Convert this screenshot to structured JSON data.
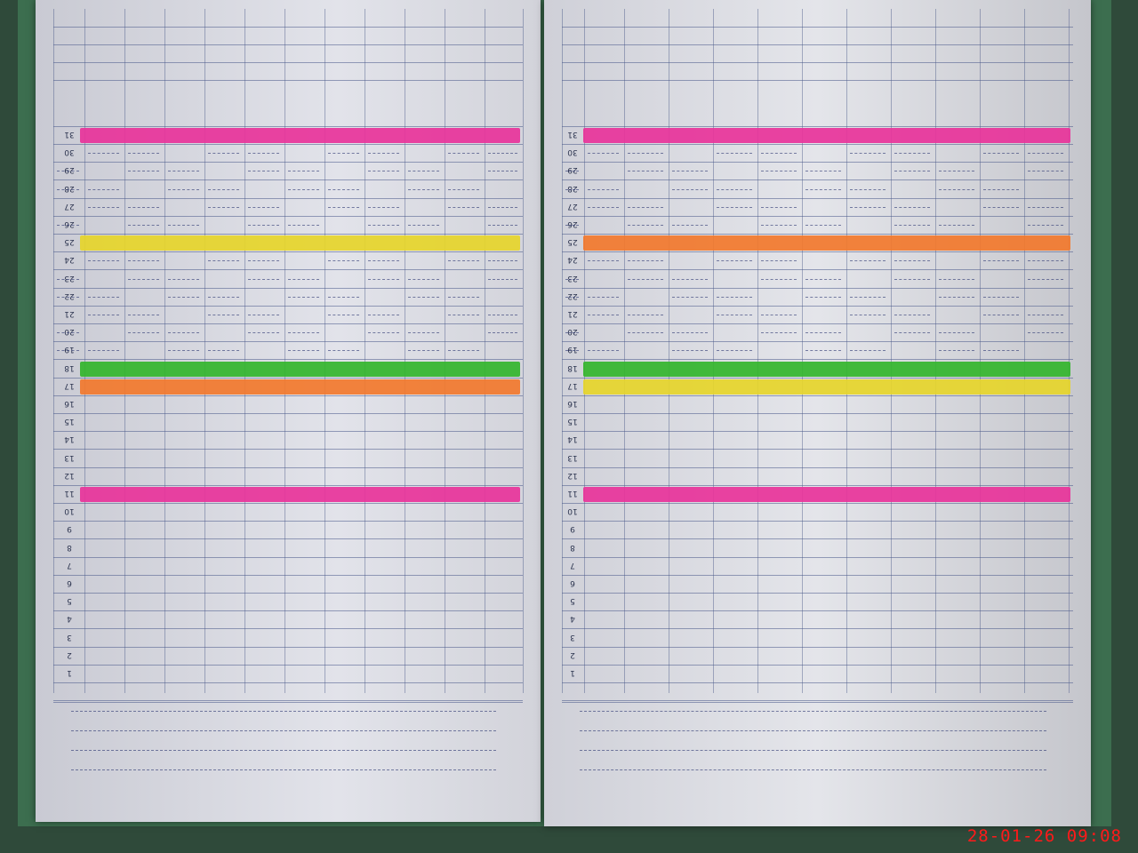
{
  "camera_timestamp": "28-01-26 09:08",
  "register": {
    "days": [
      1,
      2,
      3,
      4,
      5,
      6,
      7,
      8,
      9,
      10,
      11,
      12,
      13,
      14,
      15,
      16,
      17,
      18,
      19,
      20,
      21,
      22,
      23,
      24,
      25,
      26,
      27,
      28,
      29,
      30,
      31
    ],
    "colors": {
      "magenta": "#e8339a",
      "yellow": "#e6d52a",
      "green": "#33b52c",
      "orange": "#f2782d"
    },
    "left_page_bands": [
      {
        "day": 31,
        "color": "magenta"
      },
      {
        "day": 25,
        "color": "yellow"
      },
      {
        "day": 18,
        "color": "green"
      },
      {
        "day": 17,
        "color": "orange"
      },
      {
        "day": 11,
        "color": "magenta"
      }
    ],
    "right_page_bands": [
      {
        "day": 31,
        "color": "magenta"
      },
      {
        "day": 25,
        "color": "orange"
      },
      {
        "day": 18,
        "color": "green"
      },
      {
        "day": 17,
        "color": "yellow"
      },
      {
        "day": 11,
        "color": "magenta"
      }
    ]
  }
}
